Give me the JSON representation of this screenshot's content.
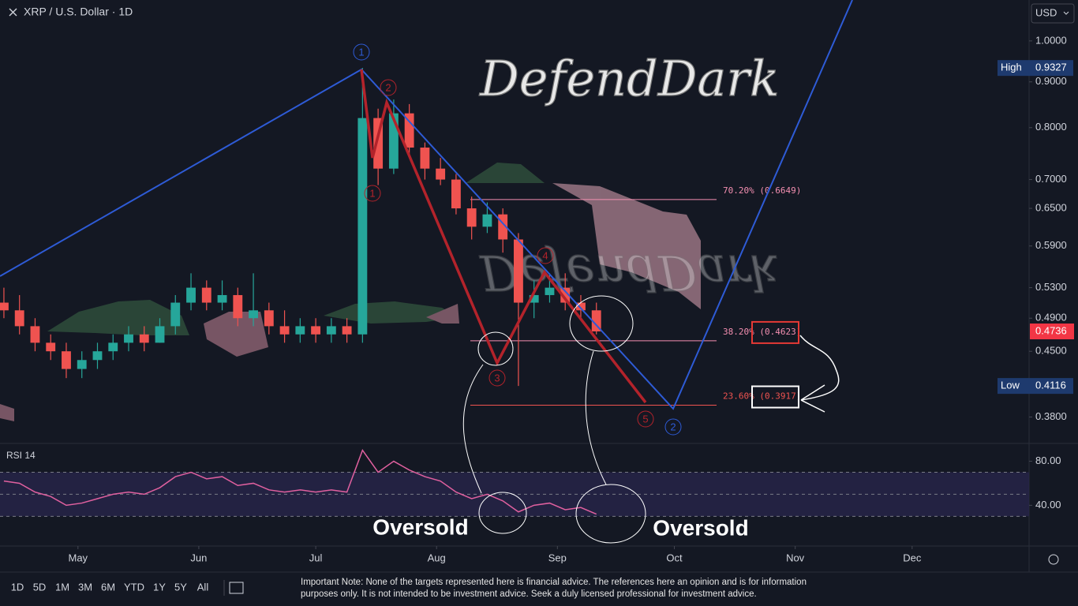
{
  "header": {
    "symbol": "XRP / U.S. Dollar · 1D",
    "currency": "USD"
  },
  "watermark": "DefendDark",
  "chart_data": [
    {
      "type": "candlestick",
      "x": [
        102,
        106,
        110,
        114,
        118,
        122,
        126,
        130,
        134,
        138,
        142,
        146,
        150,
        154,
        158,
        162,
        166,
        170,
        174,
        178,
        182,
        186,
        190,
        194,
        198,
        202,
        206,
        210,
        214,
        218,
        222,
        226,
        230,
        234,
        238,
        242,
        246,
        250,
        254
      ],
      "open": [
        0.51,
        0.5,
        0.48,
        0.46,
        0.45,
        0.43,
        0.44,
        0.45,
        0.46,
        0.47,
        0.46,
        0.48,
        0.51,
        0.53,
        0.51,
        0.52,
        0.49,
        0.5,
        0.48,
        0.47,
        0.48,
        0.47,
        0.48,
        0.47,
        0.82,
        0.72,
        0.83,
        0.76,
        0.72,
        0.7,
        0.65,
        0.62,
        0.64,
        0.6,
        0.51,
        0.52,
        0.53,
        0.51,
        0.5
      ],
      "high": [
        0.53,
        0.52,
        0.49,
        0.47,
        0.46,
        0.45,
        0.46,
        0.47,
        0.48,
        0.48,
        0.49,
        0.52,
        0.55,
        0.54,
        0.54,
        0.53,
        0.55,
        0.51,
        0.5,
        0.49,
        0.49,
        0.49,
        0.49,
        0.9327,
        0.84,
        0.86,
        0.85,
        0.77,
        0.74,
        0.71,
        0.67,
        0.66,
        0.65,
        0.61,
        0.54,
        0.55,
        0.55,
        0.52,
        0.51
      ],
      "low": [
        0.49,
        0.47,
        0.45,
        0.44,
        0.42,
        0.42,
        0.43,
        0.44,
        0.45,
        0.45,
        0.46,
        0.47,
        0.5,
        0.5,
        0.5,
        0.48,
        0.48,
        0.47,
        0.46,
        0.46,
        0.46,
        0.46,
        0.46,
        0.46,
        0.69,
        0.71,
        0.74,
        0.7,
        0.69,
        0.64,
        0.6,
        0.61,
        0.58,
        0.4116,
        0.49,
        0.51,
        0.5,
        0.49,
        0.47
      ],
      "close": [
        0.5,
        0.48,
        0.46,
        0.45,
        0.43,
        0.44,
        0.45,
        0.46,
        0.47,
        0.46,
        0.48,
        0.51,
        0.53,
        0.51,
        0.52,
        0.49,
        0.5,
        0.48,
        0.47,
        0.48,
        0.47,
        0.48,
        0.47,
        0.82,
        0.72,
        0.83,
        0.76,
        0.72,
        0.7,
        0.65,
        0.62,
        0.64,
        0.6,
        0.51,
        0.52,
        0.53,
        0.51,
        0.5,
        0.4736
      ],
      "up_color": "#26a69a",
      "down_color": "#ef5350",
      "log_scale": true,
      "xlim": [
        101,
        365
      ],
      "xticks": [
        {
          "value": 121,
          "label": "May"
        },
        {
          "value": 152,
          "label": "Jun"
        },
        {
          "value": 182,
          "label": "Jul"
        },
        {
          "value": 213,
          "label": "Aug"
        },
        {
          "value": 244,
          "label": "Sep"
        },
        {
          "value": 274,
          "label": "Oct"
        },
        {
          "value": 305,
          "label": "Nov"
        },
        {
          "value": 335,
          "label": "Dec"
        }
      ],
      "ylim": [
        0.355,
        1.111
      ],
      "yticks": [
        {
          "value": 1,
          "label": "1.0000"
        },
        {
          "value": 0.9,
          "label": "0.9000"
        },
        {
          "value": 0.8,
          "label": "0.8000"
        },
        {
          "value": 0.7,
          "label": "0.7000"
        },
        {
          "value": 0.65,
          "label": "0.6500"
        },
        {
          "value": 0.59,
          "label": "0.5900"
        },
        {
          "value": 0.53,
          "label": "0.5300"
        },
        {
          "value": 0.49,
          "label": "0.4900"
        },
        {
          "value": 0.45,
          "label": "0.4500"
        },
        {
          "value": 0.38,
          "label": "0.3800"
        }
      ],
      "fib_levels": [
        {
          "label": "70.20% (0.6649)",
          "value": 0.6649,
          "color": "#f48fb1"
        },
        {
          "label": "38.20% (0.4623)",
          "value": 0.4623,
          "color": "#f48fb1",
          "box_color": "#e53935"
        },
        {
          "label": "23.60% (0.3917)",
          "value": 0.3917,
          "color": "#ef5350",
          "box_color": "#ffffff"
        }
      ],
      "price_labels": [
        {
          "label": "High",
          "value": 0.9327,
          "color": "#1e3a6e"
        },
        {
          "label": "Low",
          "value": 0.4116,
          "color": "#1e3a6e"
        }
      ],
      "last_price": 0.4736,
      "last_color": "#f23645"
    },
    {
      "type": "line",
      "title": "RSI 14",
      "x": [
        102,
        106,
        110,
        114,
        118,
        122,
        126,
        130,
        134,
        138,
        142,
        146,
        150,
        154,
        158,
        162,
        166,
        170,
        174,
        178,
        182,
        186,
        190,
        194,
        198,
        202,
        206,
        210,
        214,
        218,
        222,
        226,
        230,
        234,
        238,
        242,
        246,
        250,
        254
      ],
      "values": [
        62,
        60,
        52,
        48,
        40,
        42,
        46,
        50,
        52,
        50,
        56,
        66,
        70,
        64,
        66,
        58,
        60,
        54,
        52,
        54,
        52,
        54,
        52,
        90,
        70,
        80,
        72,
        66,
        62,
        52,
        46,
        50,
        44,
        34,
        40,
        42,
        36,
        38,
        32
      ],
      "color": "#e0609f",
      "ylim": [
        3,
        94
      ],
      "yticks": [
        {
          "value": 80,
          "label": "80.00"
        },
        {
          "value": 40,
          "label": "40.00"
        }
      ],
      "bands": [
        70,
        50,
        30
      ]
    }
  ],
  "wave_labels": {
    "blue": [
      "1",
      "2"
    ],
    "red": [
      "1",
      "2",
      "3",
      "4",
      "5"
    ]
  },
  "annotations": [
    "Oversold",
    "Oversold"
  ],
  "toolbar": [
    "1D",
    "5D",
    "1M",
    "3M",
    "6M",
    "YTD",
    "1Y",
    "5Y",
    "All"
  ],
  "note": [
    "Important Note: None of the targets represented here is financial advice. The references here an opinion and is for information",
    "purposes only. It is not intended to be investment advice. Seek a duly licensed professional for investment advice."
  ]
}
